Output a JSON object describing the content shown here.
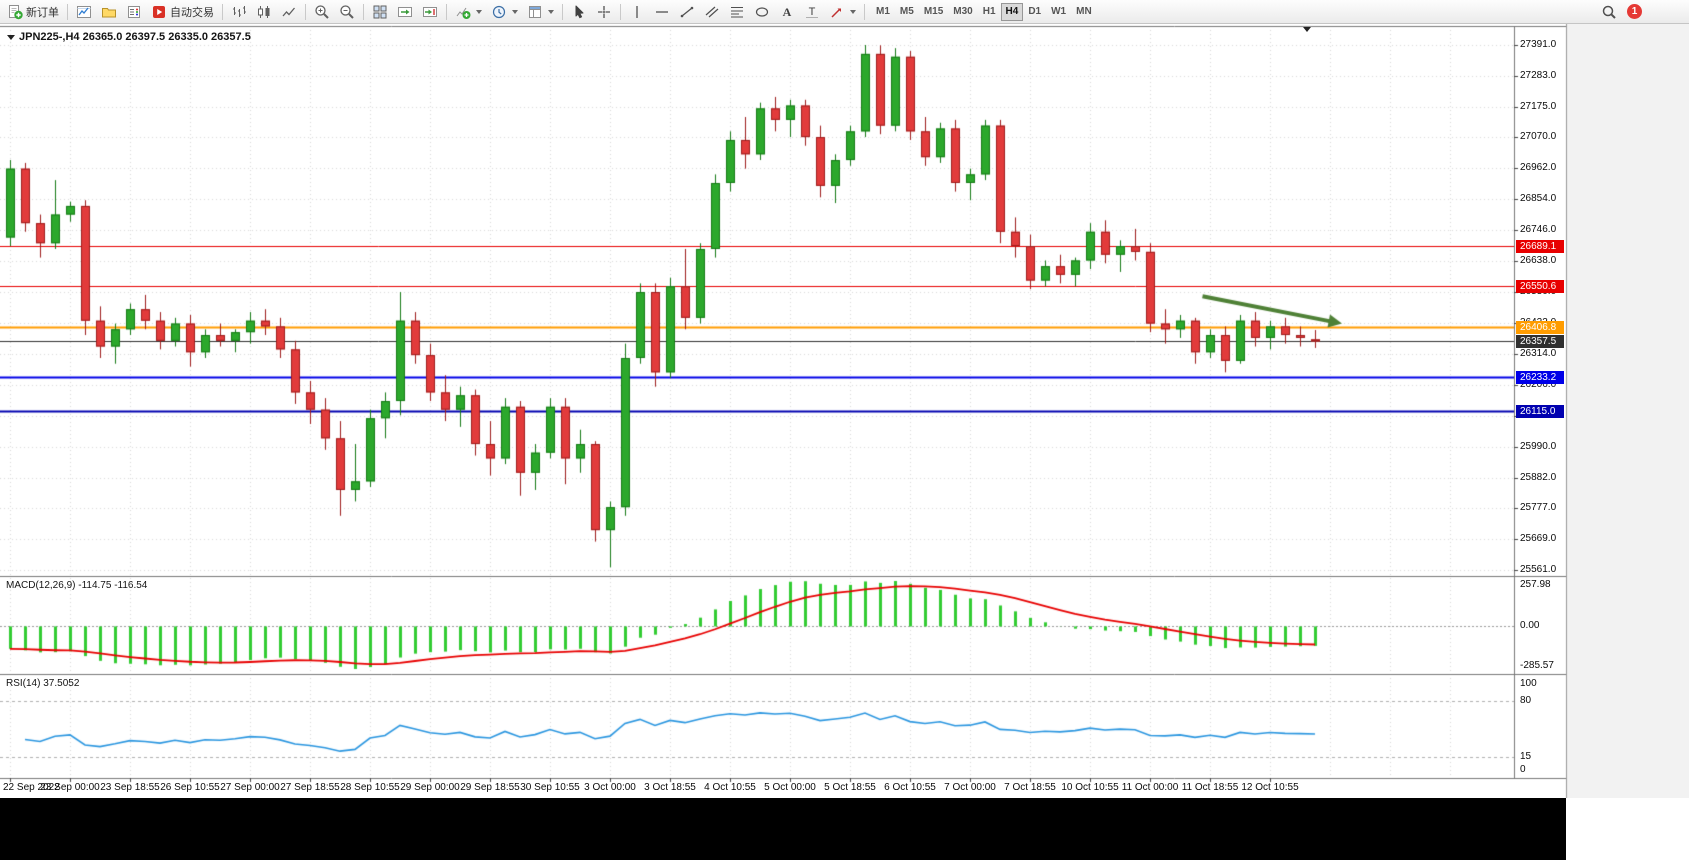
{
  "toolbar": {
    "new_order_label": "新订单",
    "auto_trading_label": "自动交易",
    "timeframes": [
      "M1",
      "M5",
      "M15",
      "M30",
      "H1",
      "H4",
      "D1",
      "W1",
      "MN"
    ],
    "active_timeframe": "H4",
    "notification_count": "1",
    "icons": [
      "new-order-icon",
      "charts-icon",
      "profiles-icon",
      "market-watch-icon",
      "auto-trading-icon",
      "bar-chart-icon",
      "candlestick-chart-icon",
      "line-chart-icon",
      "zoom-in-icon",
      "zoom-out-icon",
      "tile-windows-icon",
      "auto-scroll-icon",
      "chart-shift-icon",
      "indicators-icon",
      "periods-icon",
      "templates-icon",
      "cursor-icon",
      "crosshair-icon",
      "vertical-line-icon",
      "horizontal-line-icon",
      "trendline-icon",
      "channel-icon",
      "fibonacci-icon",
      "shapes-icon",
      "text-icon",
      "label-icon",
      "arrows-icon",
      "search-icon",
      "notification-badge"
    ]
  },
  "chart_data": {
    "type": "candlestick",
    "title": "JPN225-,H4 26365.0 26397.5 26335.0 26357.5",
    "symbol": "JPN225-",
    "timeframe": "H4",
    "ohlc_display": {
      "open": "26365.0",
      "high": "26397.5",
      "low": "26335.0",
      "close": "26357.5"
    },
    "candles": [
      [
        26720,
        26990,
        26690,
        26960
      ],
      [
        26960,
        26980,
        26740,
        26770
      ],
      [
        26770,
        26800,
        26650,
        26700
      ],
      [
        26700,
        26920,
        26680,
        26800
      ],
      [
        26800,
        26845,
        26775,
        26830
      ],
      [
        26830,
        26850,
        26380,
        26430
      ],
      [
        26430,
        26480,
        26300,
        26340
      ],
      [
        26340,
        26420,
        26280,
        26400
      ],
      [
        26400,
        26490,
        26380,
        26470
      ],
      [
        26470,
        26520,
        26400,
        26430
      ],
      [
        26430,
        26460,
        26330,
        26360
      ],
      [
        26360,
        26440,
        26340,
        26420
      ],
      [
        26420,
        26450,
        26270,
        26320
      ],
      [
        26320,
        26400,
        26300,
        26380
      ],
      [
        26380,
        26420,
        26340,
        26360
      ],
      [
        26360,
        26400,
        26320,
        26390
      ],
      [
        26390,
        26460,
        26350,
        26430
      ],
      [
        26430,
        26470,
        26380,
        26410
      ],
      [
        26410,
        26440,
        26300,
        26330
      ],
      [
        26330,
        26360,
        26140,
        26180
      ],
      [
        26180,
        26220,
        26070,
        26120
      ],
      [
        26120,
        26160,
        25980,
        26020
      ],
      [
        26020,
        26080,
        25750,
        25840
      ],
      [
        25840,
        26000,
        25800,
        25870
      ],
      [
        25870,
        26120,
        25850,
        26090
      ],
      [
        26090,
        26180,
        26020,
        26150
      ],
      [
        26150,
        26530,
        26100,
        26430
      ],
      [
        26430,
        26460,
        26280,
        26310
      ],
      [
        26310,
        26350,
        26150,
        26180
      ],
      [
        26180,
        26240,
        26080,
        26120
      ],
      [
        26120,
        26200,
        26060,
        26170
      ],
      [
        26170,
        26190,
        25960,
        26000
      ],
      [
        26000,
        26080,
        25890,
        25950
      ],
      [
        25950,
        26160,
        25930,
        26130
      ],
      [
        26130,
        26150,
        25820,
        25900
      ],
      [
        25900,
        26000,
        25840,
        25970
      ],
      [
        25970,
        26160,
        25950,
        26130
      ],
      [
        26130,
        26160,
        25860,
        25950
      ],
      [
        25950,
        26050,
        25900,
        26000
      ],
      [
        26000,
        26010,
        25660,
        25700
      ],
      [
        25700,
        25800,
        25570,
        25780
      ],
      [
        25780,
        26350,
        25750,
        26300
      ],
      [
        26300,
        26560,
        26280,
        26530
      ],
      [
        26530,
        26560,
        26200,
        26250
      ],
      [
        26250,
        26580,
        26230,
        26550
      ],
      [
        26550,
        26680,
        26400,
        26440
      ],
      [
        26440,
        26700,
        26420,
        26680
      ],
      [
        26680,
        26940,
        26650,
        26910
      ],
      [
        26910,
        27090,
        26880,
        27060
      ],
      [
        27060,
        27140,
        26960,
        27010
      ],
      [
        27010,
        27190,
        26990,
        27170
      ],
      [
        27170,
        27210,
        27090,
        27130
      ],
      [
        27130,
        27200,
        27070,
        27180
      ],
      [
        27180,
        27200,
        27040,
        27070
      ],
      [
        27070,
        27110,
        26860,
        26900
      ],
      [
        26900,
        27010,
        26840,
        26990
      ],
      [
        26990,
        27110,
        26970,
        27090
      ],
      [
        27090,
        27391,
        27070,
        27360
      ],
      [
        27360,
        27390,
        27080,
        27110
      ],
      [
        27110,
        27380,
        27090,
        27350
      ],
      [
        27350,
        27370,
        27060,
        27090
      ],
      [
        27090,
        27140,
        26970,
        27000
      ],
      [
        27000,
        27120,
        26980,
        27100
      ],
      [
        27100,
        27130,
        26880,
        26910
      ],
      [
        26910,
        26960,
        26850,
        26940
      ],
      [
        26940,
        27130,
        26920,
        27110
      ],
      [
        27110,
        27130,
        26700,
        26740
      ],
      [
        26740,
        26790,
        26650,
        26690
      ],
      [
        26690,
        26730,
        26540,
        26570
      ],
      [
        26570,
        26640,
        26550,
        26620
      ],
      [
        26620,
        26660,
        26560,
        26590
      ],
      [
        26590,
        26650,
        26550,
        26640
      ],
      [
        26640,
        26770,
        26610,
        26740
      ],
      [
        26740,
        26780,
        26630,
        26660
      ],
      [
        26660,
        26710,
        26600,
        26690
      ],
      [
        26690,
        26750,
        26640,
        26670
      ],
      [
        26670,
        26700,
        26390,
        26420
      ],
      [
        26420,
        26470,
        26350,
        26400
      ],
      [
        26400,
        26450,
        26370,
        26430
      ],
      [
        26430,
        26440,
        26280,
        26320
      ],
      [
        26320,
        26400,
        26300,
        26380
      ],
      [
        26380,
        26410,
        26250,
        26290
      ],
      [
        26290,
        26450,
        26280,
        26430
      ],
      [
        26430,
        26460,
        26340,
        26370
      ],
      [
        26370,
        26430,
        26330,
        26410
      ],
      [
        26410,
        26440,
        26350,
        26380
      ],
      [
        26380,
        26410,
        26340,
        26370
      ],
      [
        26365,
        26397.5,
        26335,
        26357.5
      ]
    ],
    "time_labels": [
      "22 Sep 2022",
      "23 Sep 00:00",
      "23 Sep 18:55",
      "26 Sep 10:55",
      "27 Sep 00:00",
      "27 Sep 18:55",
      "28 Sep 10:55",
      "29 Sep 00:00",
      "29 Sep 18:55",
      "30 Sep 10:55",
      "3 Oct 00:00",
      "3 Oct 18:55",
      "4 Oct 10:55",
      "5 Oct 00:00",
      "5 Oct 18:55",
      "6 Oct 10:55",
      "7 Oct 00:00",
      "7 Oct 18:55",
      "10 Oct 10:55",
      "11 Oct 00:00",
      "11 Oct 18:55",
      "12 Oct 10:55"
    ],
    "price_axis_labels": [
      "27391.0",
      "27283.0",
      "27175.0",
      "27070.0",
      "26962.0",
      "26854.0",
      "26746.0",
      "26638.0",
      "26530.0",
      "26422.0",
      "26314.0",
      "26206.0",
      "26098.0",
      "25990.0",
      "25882.0",
      "25777.0",
      "25669.0",
      "25561.0"
    ],
    "horizontal_lines": [
      {
        "price": 26689.1,
        "label": "26689.1",
        "color": "#e80000",
        "width": 1
      },
      {
        "price": 26550.6,
        "label": "26550.6",
        "color": "#e80000",
        "width": 1
      },
      {
        "price": 26406.8,
        "label": "26406.8",
        "color": "#ff9c00",
        "width": 2
      },
      {
        "price": 26357.5,
        "label": "26357.5",
        "color": "#303030",
        "width": 1
      },
      {
        "price": 26233.2,
        "label": "26233.2",
        "color": "#0000e8",
        "width": 2
      },
      {
        "price": 26115.0,
        "label": "26115.0",
        "color": "#0000b0",
        "width": 2
      }
    ],
    "arrow_annotation": {
      "from_index": 79.5,
      "from_price": 26515,
      "to_index": 88.8,
      "to_price": 26420,
      "color": "#4f8136"
    },
    "indicators": {
      "macd": {
        "label": "MACD(12,26,9) -114.75 -116.54",
        "fast": 12,
        "slow": 26,
        "signal": 9,
        "value": "-114.75",
        "signal_value": "-116.54",
        "axis_labels": [
          "257.98",
          "0.00",
          "-285.57"
        ],
        "histogram_color": "#32cc32",
        "signal_color": "#e80000"
      },
      "rsi": {
        "label": "RSI(14) 37.5052",
        "period": 14,
        "value": "37.5052",
        "axis_labels": [
          "100",
          "80",
          "15",
          "0"
        ],
        "levels": [
          80,
          15
        ],
        "line_color": "#2a96e0"
      }
    }
  }
}
